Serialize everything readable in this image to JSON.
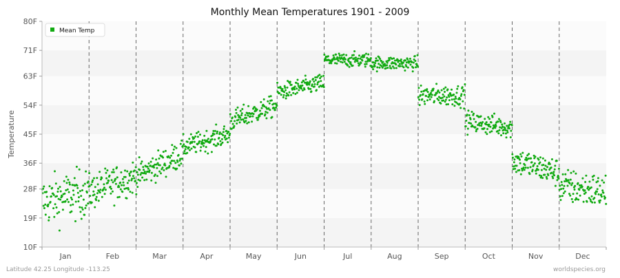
{
  "chart_data": {
    "type": "scatter",
    "title": "Monthly Mean Temperatures 1901 - 2009",
    "ylabel": "Temperature",
    "xlabel": "",
    "categories": [
      "Jan",
      "Feb",
      "Mar",
      "Apr",
      "May",
      "Jun",
      "Jul",
      "Aug",
      "Sep",
      "Oct",
      "Nov",
      "Dec"
    ],
    "yticks": [
      "10F",
      "19F",
      "28F",
      "36F",
      "45F",
      "54F",
      "63F",
      "71F",
      "80F"
    ],
    "ylim": [
      10,
      80
    ],
    "legend": {
      "label": "Mean Temp",
      "position": "top-left"
    },
    "series": [
      {
        "name": "Mean Temp",
        "color": "#11aa11",
        "points_per_month": 109,
        "monthly_range_start_to_end": [
          [
            24,
            27
          ],
          [
            27,
            32
          ],
          [
            32,
            39
          ],
          [
            41,
            45
          ],
          [
            49,
            54
          ],
          [
            58,
            61
          ],
          [
            68,
            68
          ],
          [
            67,
            67
          ],
          [
            57,
            57
          ],
          [
            49,
            47
          ],
          [
            37,
            33
          ],
          [
            29,
            27
          ]
        ],
        "monthly_spread": [
          7,
          5,
          4,
          3,
          3,
          2.5,
          2,
          2,
          3,
          3,
          4,
          5
        ]
      }
    ],
    "grid": {
      "horizontal_bands": true,
      "vertical_month_dividers": "dashed"
    }
  },
  "footer": {
    "left": "Latitude 42.25 Longitude -113.25",
    "right": "worldspecies.org"
  }
}
